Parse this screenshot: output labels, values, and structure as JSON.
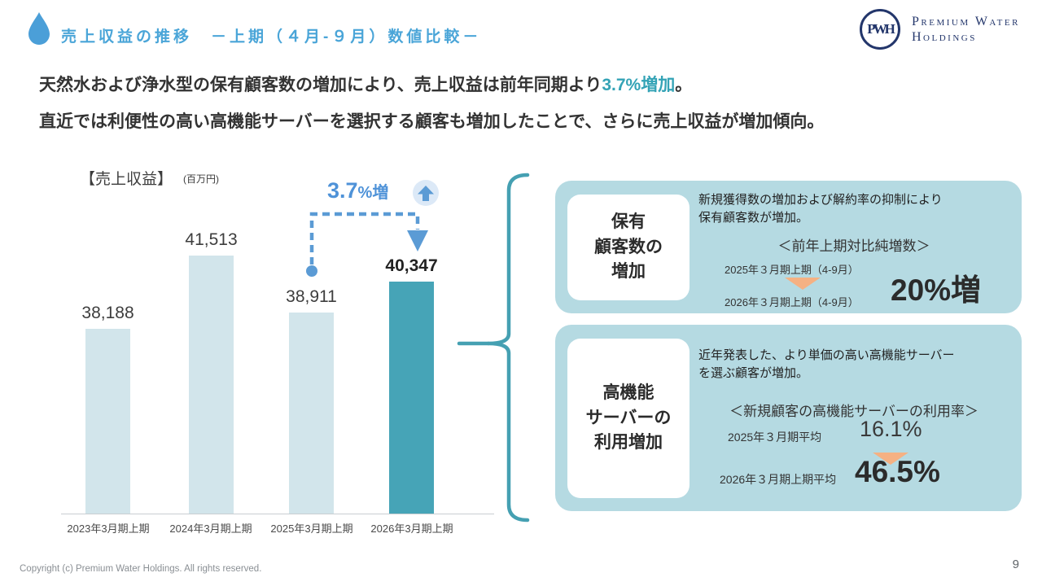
{
  "slide": {
    "title": "売上収益の推移　－上期（４月-９月）数値比較－",
    "copyright": "Copyright (c) Premium Water Holdings. All rights reserved.",
    "page_number": "9"
  },
  "logo": {
    "monogram": "PWH",
    "line1": "Premium Water",
    "line2": "Holdings"
  },
  "lead": {
    "line1_pre": "天然水および浄水型の保有顧客数の増加により、売上収益は前年同期より",
    "line1_highlight": "3.7%増加",
    "line1_end": "。",
    "line2": "直近では利便性の高い高機能サーバーを選択する顧客も増加したことで、さらに売上収益が増加傾向。"
  },
  "chart": {
    "heading": "【売上収益】",
    "unit": "(百万円)",
    "annotation_value": "3.7",
    "annotation_suffix": "%増"
  },
  "chart_data": {
    "type": "bar",
    "title": "売上収益の推移 上期（4月-9月）数値比較",
    "ylabel": "売上収益（百万円）",
    "categories": [
      "2023年3月期上期",
      "2024年3月期上期",
      "2025年3月期上期",
      "2026年3月期上期"
    ],
    "values": [
      38188,
      41513,
      38911,
      40347
    ],
    "value_labels": [
      "38,188",
      "41,513",
      "38,911",
      "40,347"
    ],
    "highlight_index": 3,
    "annotation": "3.7%増",
    "ylim": [
      29800,
      41513
    ],
    "grid": false,
    "colors": {
      "bar": "#D2E5EB",
      "bar_highlight": "#46A4B7"
    }
  },
  "boxes": [
    {
      "title_lines": [
        "保有",
        "顧客数の",
        "増加"
      ],
      "desc_lines": [
        "新規獲得数の増加および解約率の抑制により",
        "保有顧客数が増加。"
      ],
      "subtitle": "＜前年上期対比純増数＞",
      "row1": "2025年３月期上期（4-9月）",
      "row2": "2026年３月期上期（4-9月）",
      "value": "20%増"
    },
    {
      "title_lines": [
        "高機能",
        "サーバーの",
        "利用増加"
      ],
      "desc_lines": [
        "近年発表した、より単価の高い高機能サーバー",
        "を選ぶ顧客が増加。"
      ],
      "subtitle": "＜新規顧客の高機能サーバーの利用率＞",
      "row1_label": "2025年３月期平均",
      "row1_value": "16.1%",
      "row2_label": "2026年３月期上期平均",
      "row2_value": "46.5%"
    }
  ]
}
